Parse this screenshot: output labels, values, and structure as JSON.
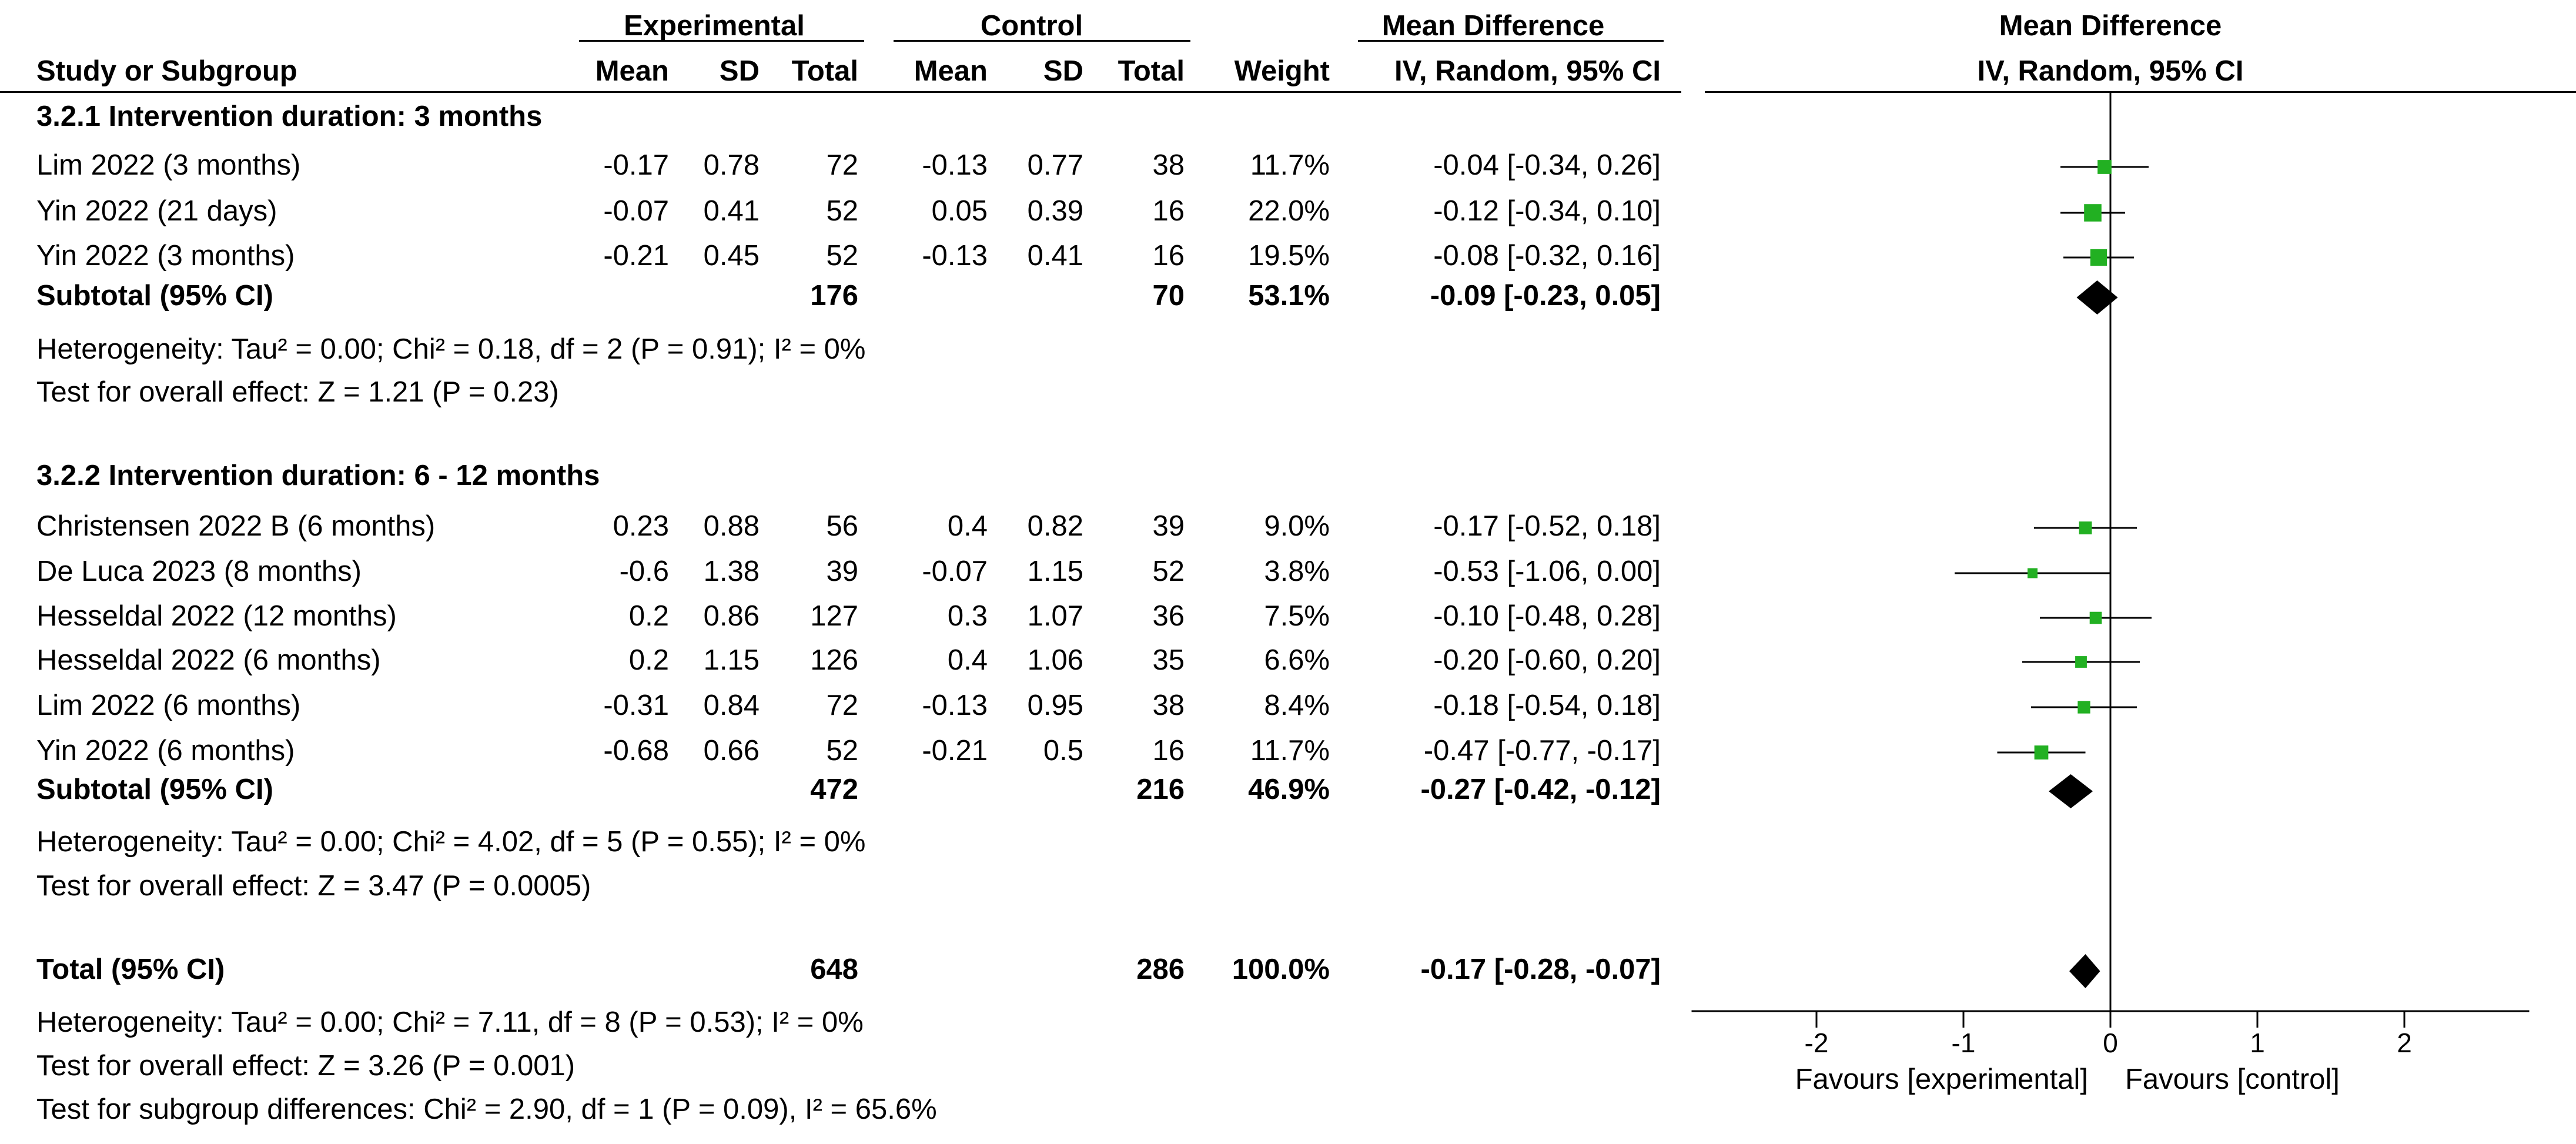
{
  "chart_data": {
    "type": "forest",
    "header": {
      "group_experimental": "Experimental",
      "group_control": "Control",
      "col_study": "Study or Subgroup",
      "col_mean": "Mean",
      "col_sd": "SD",
      "col_total": "Total",
      "col_weight": "Weight",
      "col_md_title": "Mean Difference",
      "col_md_method": "IV, Random, 95% CI",
      "plot_title": "Mean Difference",
      "plot_method": "IV, Random, 95% CI"
    },
    "subgroups": [
      {
        "title": "3.2.1 Intervention duration: 3 months",
        "studies": [
          {
            "name": "Lim 2022 (3 months)",
            "exp_mean": "-0.17",
            "exp_sd": "0.78",
            "exp_total": "72",
            "ctl_mean": "-0.13",
            "ctl_sd": "0.77",
            "ctl_total": "38",
            "weight": "11.7%",
            "ci_text": "-0.04 [-0.34, 0.26]",
            "md": -0.04,
            "lo": -0.34,
            "hi": 0.26,
            "w": 11.7
          },
          {
            "name": "Yin 2022 (21 days)",
            "exp_mean": "-0.07",
            "exp_sd": "0.41",
            "exp_total": "52",
            "ctl_mean": "0.05",
            "ctl_sd": "0.39",
            "ctl_total": "16",
            "weight": "22.0%",
            "ci_text": "-0.12 [-0.34, 0.10]",
            "md": -0.12,
            "lo": -0.34,
            "hi": 0.1,
            "w": 22.0
          },
          {
            "name": "Yin 2022 (3 months)",
            "exp_mean": "-0.21",
            "exp_sd": "0.45",
            "exp_total": "52",
            "ctl_mean": "-0.13",
            "ctl_sd": "0.41",
            "ctl_total": "16",
            "weight": "19.5%",
            "ci_text": "-0.08 [-0.32, 0.16]",
            "md": -0.08,
            "lo": -0.32,
            "hi": 0.16,
            "w": 19.5
          }
        ],
        "subtotal": {
          "label": "Subtotal (95% CI)",
          "exp_total": "176",
          "ctl_total": "70",
          "weight": "53.1%",
          "ci_text": "-0.09 [-0.23, 0.05]",
          "md": -0.09,
          "lo": -0.23,
          "hi": 0.05
        },
        "heterogeneity": "Heterogeneity: Tau² = 0.00; Chi² = 0.18, df = 2 (P = 0.91); I² = 0%",
        "overall": "Test for overall effect: Z = 1.21 (P = 0.23)"
      },
      {
        "title": "3.2.2 Intervention duration: 6 - 12 months",
        "studies": [
          {
            "name": "Christensen 2022 B (6 months)",
            "exp_mean": "0.23",
            "exp_sd": "0.88",
            "exp_total": "56",
            "ctl_mean": "0.4",
            "ctl_sd": "0.82",
            "ctl_total": "39",
            "weight": "9.0%",
            "ci_text": "-0.17 [-0.52, 0.18]",
            "md": -0.17,
            "lo": -0.52,
            "hi": 0.18,
            "w": 9.0
          },
          {
            "name": "De Luca 2023 (8 months)",
            "exp_mean": "-0.6",
            "exp_sd": "1.38",
            "exp_total": "39",
            "ctl_mean": "-0.07",
            "ctl_sd": "1.15",
            "ctl_total": "52",
            "weight": "3.8%",
            "ci_text": "-0.53 [-1.06, 0.00]",
            "md": -0.53,
            "lo": -1.06,
            "hi": 0.0,
            "w": 3.8
          },
          {
            "name": "Hesseldal 2022 (12 months)",
            "exp_mean": "0.2",
            "exp_sd": "0.86",
            "exp_total": "127",
            "ctl_mean": "0.3",
            "ctl_sd": "1.07",
            "ctl_total": "36",
            "weight": "7.5%",
            "ci_text": "-0.10 [-0.48, 0.28]",
            "md": -0.1,
            "lo": -0.48,
            "hi": 0.28,
            "w": 7.5
          },
          {
            "name": "Hesseldal 2022 (6 months)",
            "exp_mean": "0.2",
            "exp_sd": "1.15",
            "exp_total": "126",
            "ctl_mean": "0.4",
            "ctl_sd": "1.06",
            "ctl_total": "35",
            "weight": "6.6%",
            "ci_text": "-0.20 [-0.60, 0.20]",
            "md": -0.2,
            "lo": -0.6,
            "hi": 0.2,
            "w": 6.6
          },
          {
            "name": "Lim 2022 (6 months)",
            "exp_mean": "-0.31",
            "exp_sd": "0.84",
            "exp_total": "72",
            "ctl_mean": "-0.13",
            "ctl_sd": "0.95",
            "ctl_total": "38",
            "weight": "8.4%",
            "ci_text": "-0.18 [-0.54, 0.18]",
            "md": -0.18,
            "lo": -0.54,
            "hi": 0.18,
            "w": 8.4
          },
          {
            "name": "Yin 2022 (6 months)",
            "exp_mean": "-0.68",
            "exp_sd": "0.66",
            "exp_total": "52",
            "ctl_mean": "-0.21",
            "ctl_sd": "0.5",
            "ctl_total": "16",
            "weight": "11.7%",
            "ci_text": "-0.47 [-0.77, -0.17]",
            "md": -0.47,
            "lo": -0.77,
            "hi": -0.17,
            "w": 11.7
          }
        ],
        "subtotal": {
          "label": "Subtotal (95% CI)",
          "exp_total": "472",
          "ctl_total": "216",
          "weight": "46.9%",
          "ci_text": "-0.27 [-0.42, -0.12]",
          "md": -0.27,
          "lo": -0.42,
          "hi": -0.12
        },
        "heterogeneity": "Heterogeneity: Tau² = 0.00; Chi² = 4.02, df = 5 (P = 0.55); I² = 0%",
        "overall": "Test for overall effect: Z = 3.47 (P = 0.0005)"
      }
    ],
    "total": {
      "label": "Total (95% CI)",
      "exp_total": "648",
      "ctl_total": "286",
      "weight": "100.0%",
      "ci_text": "-0.17 [-0.28, -0.07]",
      "md": -0.17,
      "lo": -0.28,
      "hi": -0.07,
      "heterogeneity": "Heterogeneity: Tau² = 0.00; Chi² = 7.11, df = 8 (P = 0.53); I² = 0%",
      "overall": "Test for overall effect: Z = 3.26 (P = 0.001)",
      "subgroup_diff": "Test for subgroup differences: Chi² = 2.90, df = 1 (P = 0.09), I² = 65.6%"
    },
    "x_axis": {
      "ticks": [
        -2,
        -1,
        0,
        1,
        2
      ],
      "range": [
        -2.85,
        2.85
      ],
      "label_left": "Favours [experimental]",
      "label_right": "Favours [control]"
    },
    "colors": {
      "study_marker": "#22b022",
      "summary_marker": "#000000",
      "line": "#000000"
    }
  }
}
